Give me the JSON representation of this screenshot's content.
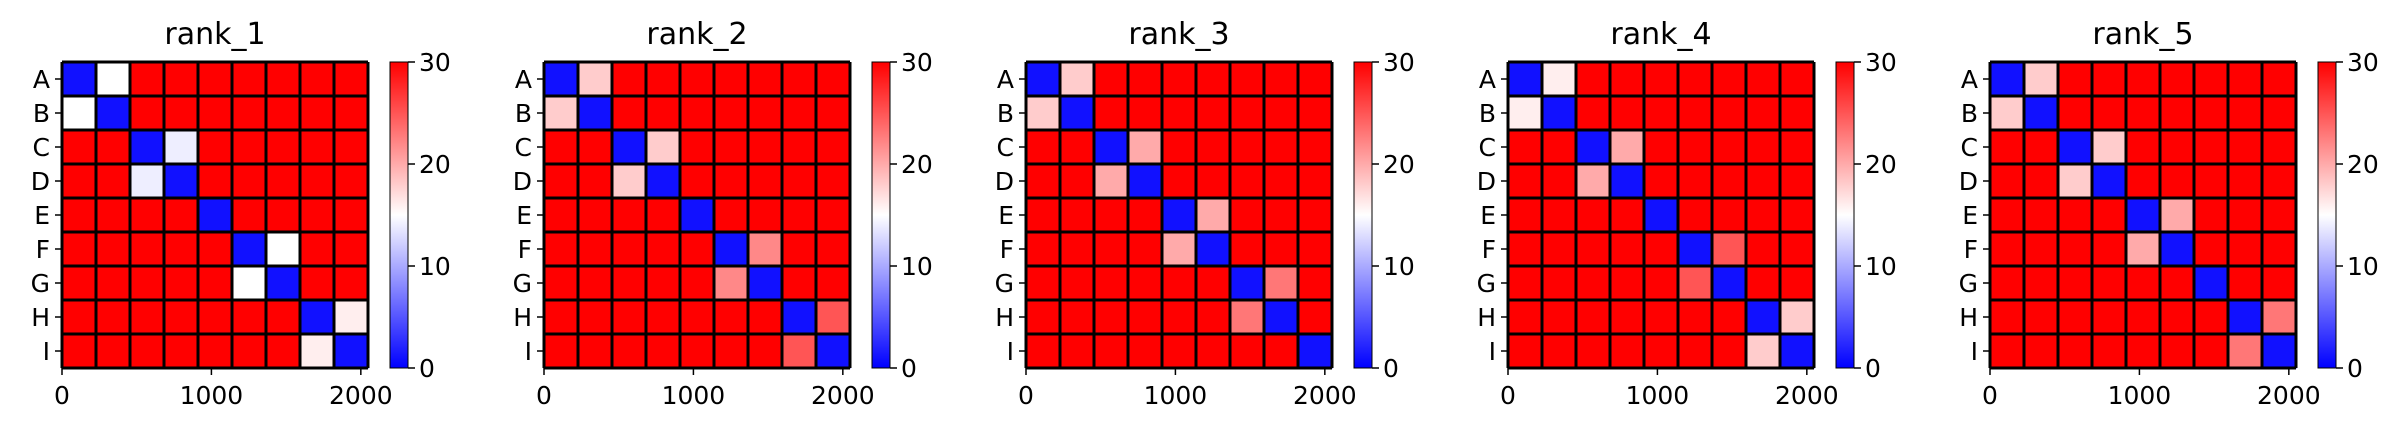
{
  "chart_data": [
    {
      "type": "heatmap",
      "title": "rank_1",
      "row_labels": [
        "A",
        "B",
        "C",
        "D",
        "E",
        "F",
        "G",
        "H",
        "I"
      ],
      "xticks": [
        "0",
        "1000",
        "2000"
      ],
      "xtick_values": [
        0,
        1000,
        2000
      ],
      "xlim": [
        0,
        2048
      ],
      "colorbar": {
        "min": 0,
        "max": 30,
        "ticks": [
          "0",
          "10",
          "20",
          "30"
        ],
        "colors": [
          "#0000ff",
          "#ffffff",
          "#ff0000"
        ]
      },
      "blocks": [
        [
          1,
          15
        ],
        [
          15,
          1
        ],
        [
          1,
          14
        ],
        [
          14,
          1
        ],
        [
          1
        ],
        [
          1,
          15
        ],
        [
          15,
          1
        ],
        [
          1,
          16
        ],
        [
          16,
          1
        ]
      ]
    },
    {
      "type": "heatmap",
      "title": "rank_2",
      "row_labels": [
        "A",
        "B",
        "C",
        "D",
        "E",
        "F",
        "G",
        "H",
        "I"
      ],
      "xticks": [
        "0",
        "1000",
        "2000"
      ],
      "xtick_values": [
        0,
        1000,
        2000
      ],
      "xlim": [
        0,
        2048
      ],
      "colorbar": {
        "min": 0,
        "max": 30,
        "ticks": [
          "0",
          "10",
          "20",
          "30"
        ],
        "colors": [
          "#0000ff",
          "#ffffff",
          "#ff0000"
        ]
      },
      "blocks": [
        [
          1,
          18
        ],
        [
          18,
          1
        ],
        [
          1,
          18
        ],
        [
          18,
          1
        ],
        [
          1
        ],
        [
          1,
          22
        ],
        [
          22,
          1
        ],
        [
          1,
          25
        ],
        [
          25,
          1
        ]
      ]
    },
    {
      "type": "heatmap",
      "title": "rank_3",
      "row_labels": [
        "A",
        "B",
        "C",
        "D",
        "E",
        "F",
        "G",
        "H",
        "I"
      ],
      "xticks": [
        "0",
        "1000",
        "2000"
      ],
      "xtick_values": [
        0,
        1000,
        2000
      ],
      "xlim": [
        0,
        2048
      ],
      "colorbar": {
        "min": 0,
        "max": 30,
        "ticks": [
          "0",
          "10",
          "20",
          "30"
        ],
        "colors": [
          "#0000ff",
          "#ffffff",
          "#ff0000"
        ]
      },
      "blocks": [
        [
          1,
          18
        ],
        [
          18,
          1
        ],
        [
          1,
          20
        ],
        [
          20,
          1
        ],
        [
          1,
          20
        ],
        [
          20,
          1
        ],
        [
          1,
          23
        ],
        [
          23,
          1
        ],
        [
          1
        ]
      ]
    },
    {
      "type": "heatmap",
      "title": "rank_4",
      "row_labels": [
        "A",
        "B",
        "C",
        "D",
        "E",
        "F",
        "G",
        "H",
        "I"
      ],
      "xticks": [
        "0",
        "1000",
        "2000"
      ],
      "xtick_values": [
        0,
        1000,
        2000
      ],
      "xlim": [
        0,
        2048
      ],
      "colorbar": {
        "min": 0,
        "max": 30,
        "ticks": [
          "0",
          "10",
          "20",
          "30"
        ],
        "colors": [
          "#0000ff",
          "#ffffff",
          "#ff0000"
        ]
      },
      "blocks": [
        [
          1,
          16
        ],
        [
          16,
          1
        ],
        [
          1,
          20
        ],
        [
          20,
          1
        ],
        [
          1
        ],
        [
          1,
          25
        ],
        [
          25,
          1
        ],
        [
          1,
          18
        ],
        [
          18,
          1
        ]
      ]
    },
    {
      "type": "heatmap",
      "title": "rank_5",
      "row_labels": [
        "A",
        "B",
        "C",
        "D",
        "E",
        "F",
        "G",
        "H",
        "I"
      ],
      "xticks": [
        "0",
        "1000",
        "2000"
      ],
      "xtick_values": [
        0,
        1000,
        2000
      ],
      "xlim": [
        0,
        2048
      ],
      "colorbar": {
        "min": 0,
        "max": 30,
        "ticks": [
          "0",
          "10",
          "20",
          "30"
        ],
        "colors": [
          "#0000ff",
          "#ffffff",
          "#ff0000"
        ]
      },
      "blocks": [
        [
          1,
          18
        ],
        [
          18,
          1
        ],
        [
          1,
          18
        ],
        [
          18,
          1
        ],
        [
          1,
          20
        ],
        [
          20,
          1
        ],
        [
          1
        ],
        [
          1,
          23
        ],
        [
          23,
          1
        ]
      ]
    }
  ]
}
